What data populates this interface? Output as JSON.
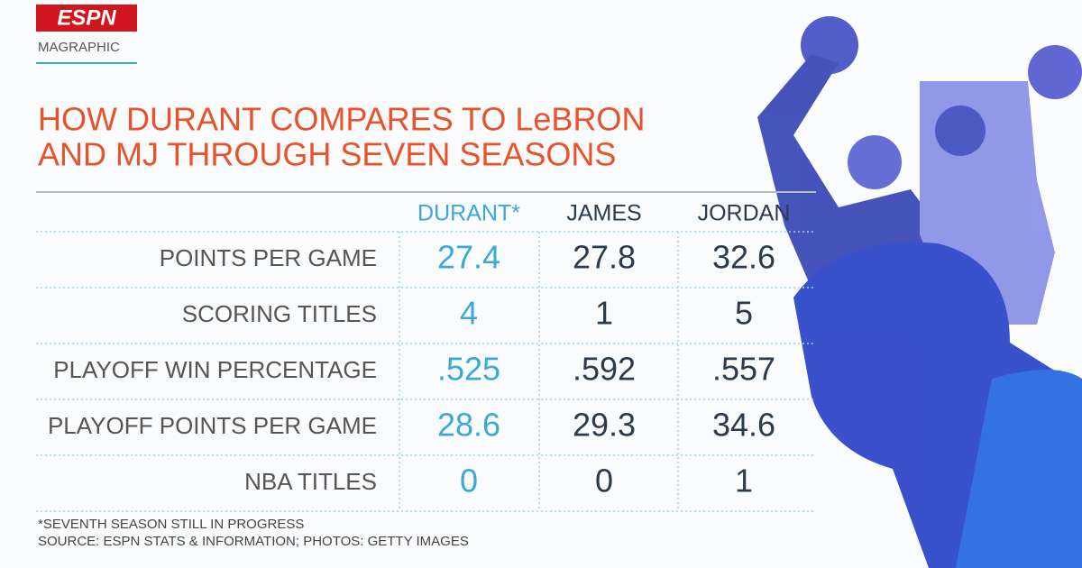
{
  "header": {
    "logo": "ESPN",
    "section": "MAGRAPHIC"
  },
  "title": [
    "HOW DURANT COMPARES TO LeBRON",
    "AND MJ THROUGH SEVEN SEASONS"
  ],
  "table": {
    "columns": [
      "DURANT*",
      "JAMES",
      "JORDAN"
    ],
    "rows": [
      {
        "label": "POINTS PER GAME",
        "values": [
          "27.4",
          "27.8",
          "32.6"
        ]
      },
      {
        "label": "SCORING TITLES",
        "values": [
          "4",
          "1",
          "5"
        ]
      },
      {
        "label": "PLAYOFF WIN PERCENTAGE",
        "values": [
          ".525",
          ".592",
          ".557"
        ]
      },
      {
        "label": "PLAYOFF POINTS PER GAME",
        "values": [
          "28.6",
          "29.3",
          "34.6"
        ]
      },
      {
        "label": "NBA TITLES",
        "values": [
          "0",
          "0",
          "1"
        ]
      }
    ]
  },
  "footnotes": [
    "*SEVENTH SEASON STILL IN PROGRESS",
    "SOURCE: ESPN STATS & INFORMATION; PHOTOS: GETTY IMAGES"
  ]
}
